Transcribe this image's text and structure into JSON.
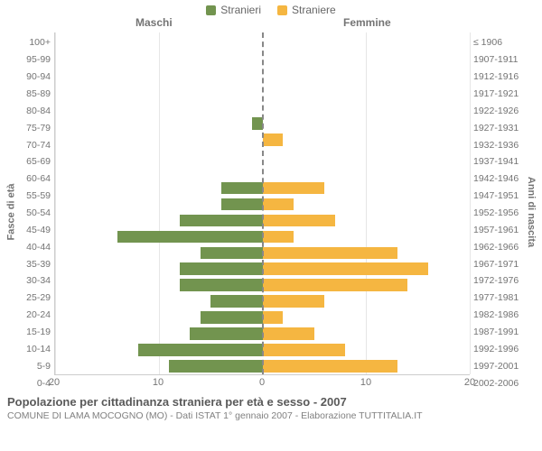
{
  "legend": {
    "male": {
      "label": "Stranieri",
      "color": "#72944f"
    },
    "female": {
      "label": "Straniere",
      "color": "#f5b641"
    }
  },
  "col_headers": {
    "left": "Maschi",
    "right": "Femmine"
  },
  "axis_left_title": "Fasce di età",
  "axis_right_title": "Anni di nascita",
  "x_ticks": [
    -20,
    -10,
    0,
    10,
    20
  ],
  "x_tick_labels": [
    "20",
    "10",
    "0",
    "10",
    "20"
  ],
  "x_max": 20,
  "grid_color": "#e6e6e6",
  "centerline_color": "#888888",
  "rows": [
    {
      "age": "100+",
      "year": "≤ 1906",
      "m": 0,
      "f": 0
    },
    {
      "age": "95-99",
      "year": "1907-1911",
      "m": 0,
      "f": 0
    },
    {
      "age": "90-94",
      "year": "1912-1916",
      "m": 0,
      "f": 0
    },
    {
      "age": "85-89",
      "year": "1917-1921",
      "m": 0,
      "f": 0
    },
    {
      "age": "80-84",
      "year": "1922-1926",
      "m": 0,
      "f": 0
    },
    {
      "age": "75-79",
      "year": "1927-1931",
      "m": 1,
      "f": 0
    },
    {
      "age": "70-74",
      "year": "1932-1936",
      "m": 0,
      "f": 2
    },
    {
      "age": "65-69",
      "year": "1937-1941",
      "m": 0,
      "f": 0
    },
    {
      "age": "60-64",
      "year": "1942-1946",
      "m": 0,
      "f": 0
    },
    {
      "age": "55-59",
      "year": "1947-1951",
      "m": 4,
      "f": 6
    },
    {
      "age": "50-54",
      "year": "1952-1956",
      "m": 4,
      "f": 3
    },
    {
      "age": "45-49",
      "year": "1957-1961",
      "m": 8,
      "f": 7
    },
    {
      "age": "40-44",
      "year": "1962-1966",
      "m": 14,
      "f": 3
    },
    {
      "age": "35-39",
      "year": "1967-1971",
      "m": 6,
      "f": 13
    },
    {
      "age": "30-34",
      "year": "1972-1976",
      "m": 8,
      "f": 16
    },
    {
      "age": "25-29",
      "year": "1977-1981",
      "m": 8,
      "f": 14
    },
    {
      "age": "20-24",
      "year": "1982-1986",
      "m": 5,
      "f": 6
    },
    {
      "age": "15-19",
      "year": "1987-1991",
      "m": 6,
      "f": 2
    },
    {
      "age": "10-14",
      "year": "1992-1996",
      "m": 7,
      "f": 5
    },
    {
      "age": "5-9",
      "year": "1997-2001",
      "m": 12,
      "f": 8
    },
    {
      "age": "0-4",
      "year": "2002-2006",
      "m": 9,
      "f": 13
    }
  ],
  "footer": {
    "title": "Popolazione per cittadinanza straniera per età e sesso - 2007",
    "subtitle": "COMUNE DI LAMA MOCOGNO (MO) - Dati ISTAT 1° gennaio 2007 - Elaborazione TUTTITALIA.IT"
  }
}
